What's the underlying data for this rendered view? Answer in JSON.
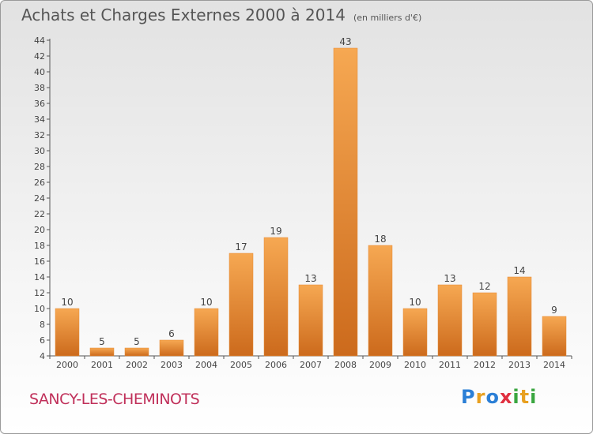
{
  "title": "Achats et Charges Externes 2000 à 2014",
  "subtitle": "(en milliers d'€)",
  "commune": "SANCY-LES-CHEMINOTS",
  "brand": {
    "letters": [
      "P",
      "r",
      "o",
      "x",
      "i",
      "t",
      "i"
    ],
    "colors": [
      "#2b7fd6",
      "#e8a020",
      "#2b7fd6",
      "#e03040",
      "#3aa640",
      "#e8a020",
      "#3aa640"
    ]
  },
  "colors": {
    "bar_light": "#f6a852",
    "bar_dark": "#cc6a1c",
    "title": "#555555",
    "commune": "#c0305a"
  },
  "chart_data": {
    "type": "bar",
    "categories": [
      "2000",
      "2001",
      "2002",
      "2003",
      "2004",
      "2005",
      "2006",
      "2007",
      "2008",
      "2009",
      "2010",
      "2011",
      "2012",
      "2013",
      "2014"
    ],
    "values": [
      10,
      5,
      5,
      6,
      10,
      17,
      19,
      13,
      43,
      18,
      10,
      13,
      12,
      14,
      9
    ],
    "ylim": [
      4,
      44
    ],
    "yticks": [
      4,
      6,
      8,
      10,
      12,
      14,
      16,
      18,
      20,
      22,
      24,
      26,
      28,
      30,
      32,
      34,
      36,
      38,
      40,
      42,
      44
    ],
    "grid": false,
    "data_labels": true
  }
}
